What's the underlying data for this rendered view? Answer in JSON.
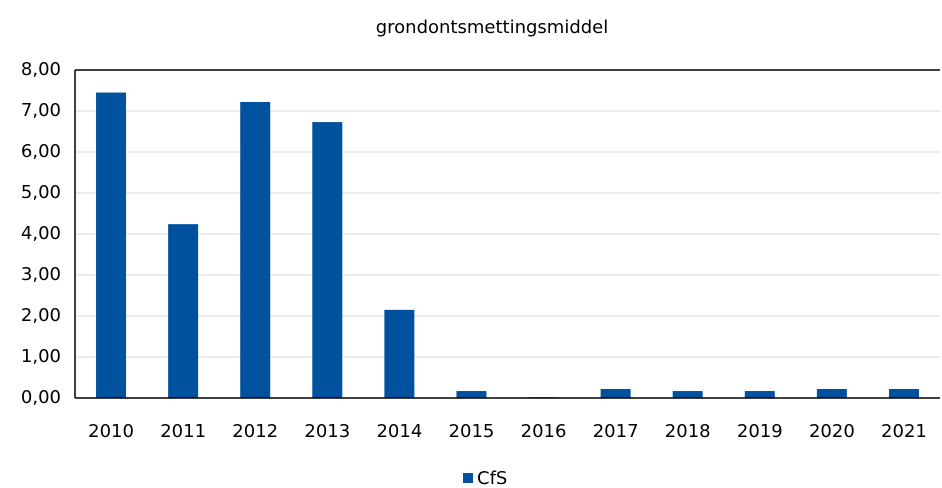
{
  "chart_data": {
    "type": "bar",
    "title": "grondontsmettingsmiddel",
    "categories": [
      "2010",
      "2011",
      "2012",
      "2013",
      "2014",
      "2015",
      "2016",
      "2017",
      "2018",
      "2019",
      "2020",
      "2021"
    ],
    "series": [
      {
        "name": "CfS",
        "color": "#00519e",
        "values": [
          7.45,
          4.24,
          7.22,
          6.73,
          2.15,
          0.17,
          0.02,
          0.22,
          0.17,
          0.17,
          0.22,
          0.22
        ]
      }
    ],
    "ylim": [
      0,
      8
    ],
    "yticks": [
      {
        "value": 0,
        "label": "0,00"
      },
      {
        "value": 1,
        "label": "1,00"
      },
      {
        "value": 2,
        "label": "2,00"
      },
      {
        "value": 3,
        "label": "3,00"
      },
      {
        "value": 4,
        "label": "4,00"
      },
      {
        "value": 5,
        "label": "5,00"
      },
      {
        "value": 6,
        "label": "6,00"
      },
      {
        "value": 7,
        "label": "7,00"
      },
      {
        "value": 8,
        "label": "8,00"
      }
    ],
    "grid": true,
    "legend": "bottom"
  }
}
